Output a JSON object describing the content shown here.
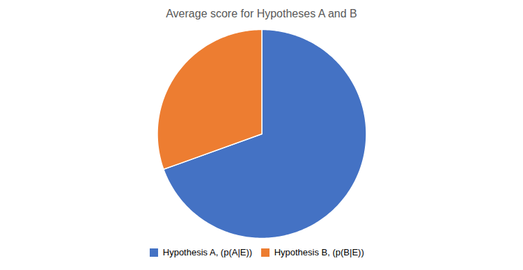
{
  "chart_data": {
    "type": "pie",
    "title": "Average score for Hypotheses A and B",
    "categories": [
      "Hypothesis A, (p(A|E))",
      "Hypothesis B, (p(B|E))"
    ],
    "values": [
      0.695,
      0.305
    ],
    "colors": [
      "#4472C4",
      "#ED7D31"
    ],
    "legend": "bottom"
  }
}
